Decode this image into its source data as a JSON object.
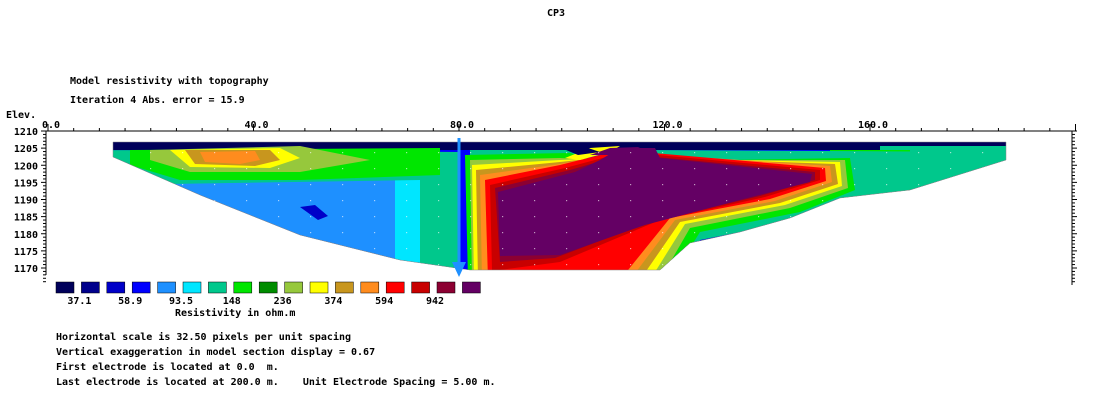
{
  "profile_title": "CP3",
  "header": {
    "line1": "Model resistivity with topography",
    "line2": "Iteration 4 Abs. error = 15.9"
  },
  "axis": {
    "y_title": "Elev.",
    "x_ticks": [
      {
        "value": 0,
        "label": "0.0"
      },
      {
        "value": 40,
        "label": "40.0"
      },
      {
        "value": 80,
        "label": "80.0"
      },
      {
        "value": 120,
        "label": "120.0"
      },
      {
        "value": 160,
        "label": "160.0"
      }
    ],
    "y_ticks": [
      {
        "value": 1210,
        "label": "1210"
      },
      {
        "value": 1205,
        "label": "1205"
      },
      {
        "value": 1200,
        "label": "1200"
      },
      {
        "value": 1195,
        "label": "1195"
      },
      {
        "value": 1190,
        "label": "1190"
      },
      {
        "value": 1185,
        "label": "1185"
      },
      {
        "value": 1180,
        "label": "1180"
      },
      {
        "value": 1175,
        "label": "1175"
      },
      {
        "value": 1170,
        "label": "1170"
      }
    ]
  },
  "chart_data": {
    "type": "heatmap",
    "title": "CP3",
    "ylabel": "Elev.",
    "xlim": [
      0,
      200
    ],
    "ylim": [
      1166,
      1210
    ],
    "marker_x": 80,
    "colors": [
      "#00005a",
      "#00008c",
      "#0000c8",
      "#0000ff",
      "#1e90ff",
      "#00e6ff",
      "#00c88c",
      "#00e600",
      "#008c00",
      "#96c83c",
      "#ffff00",
      "#c8961e",
      "#ff8c1e",
      "#ff0000",
      "#c80000",
      "#8c0032",
      "#640064"
    ],
    "legend_labels": [
      "37.1",
      "58.9",
      "93.5",
      "148",
      "236",
      "374",
      "594",
      "942"
    ],
    "legend_title": "Resistivity in ohm.m",
    "notes": [
      "Horizontal scale is 32.50 pixels per unit spacing",
      "Vertical exaggeration in model section display = 0.67",
      "First electrode is located at 0.0  m.",
      "Last electrode is located at 200.0 m.    Unit Electrode Spacing = 5.00 m."
    ]
  }
}
